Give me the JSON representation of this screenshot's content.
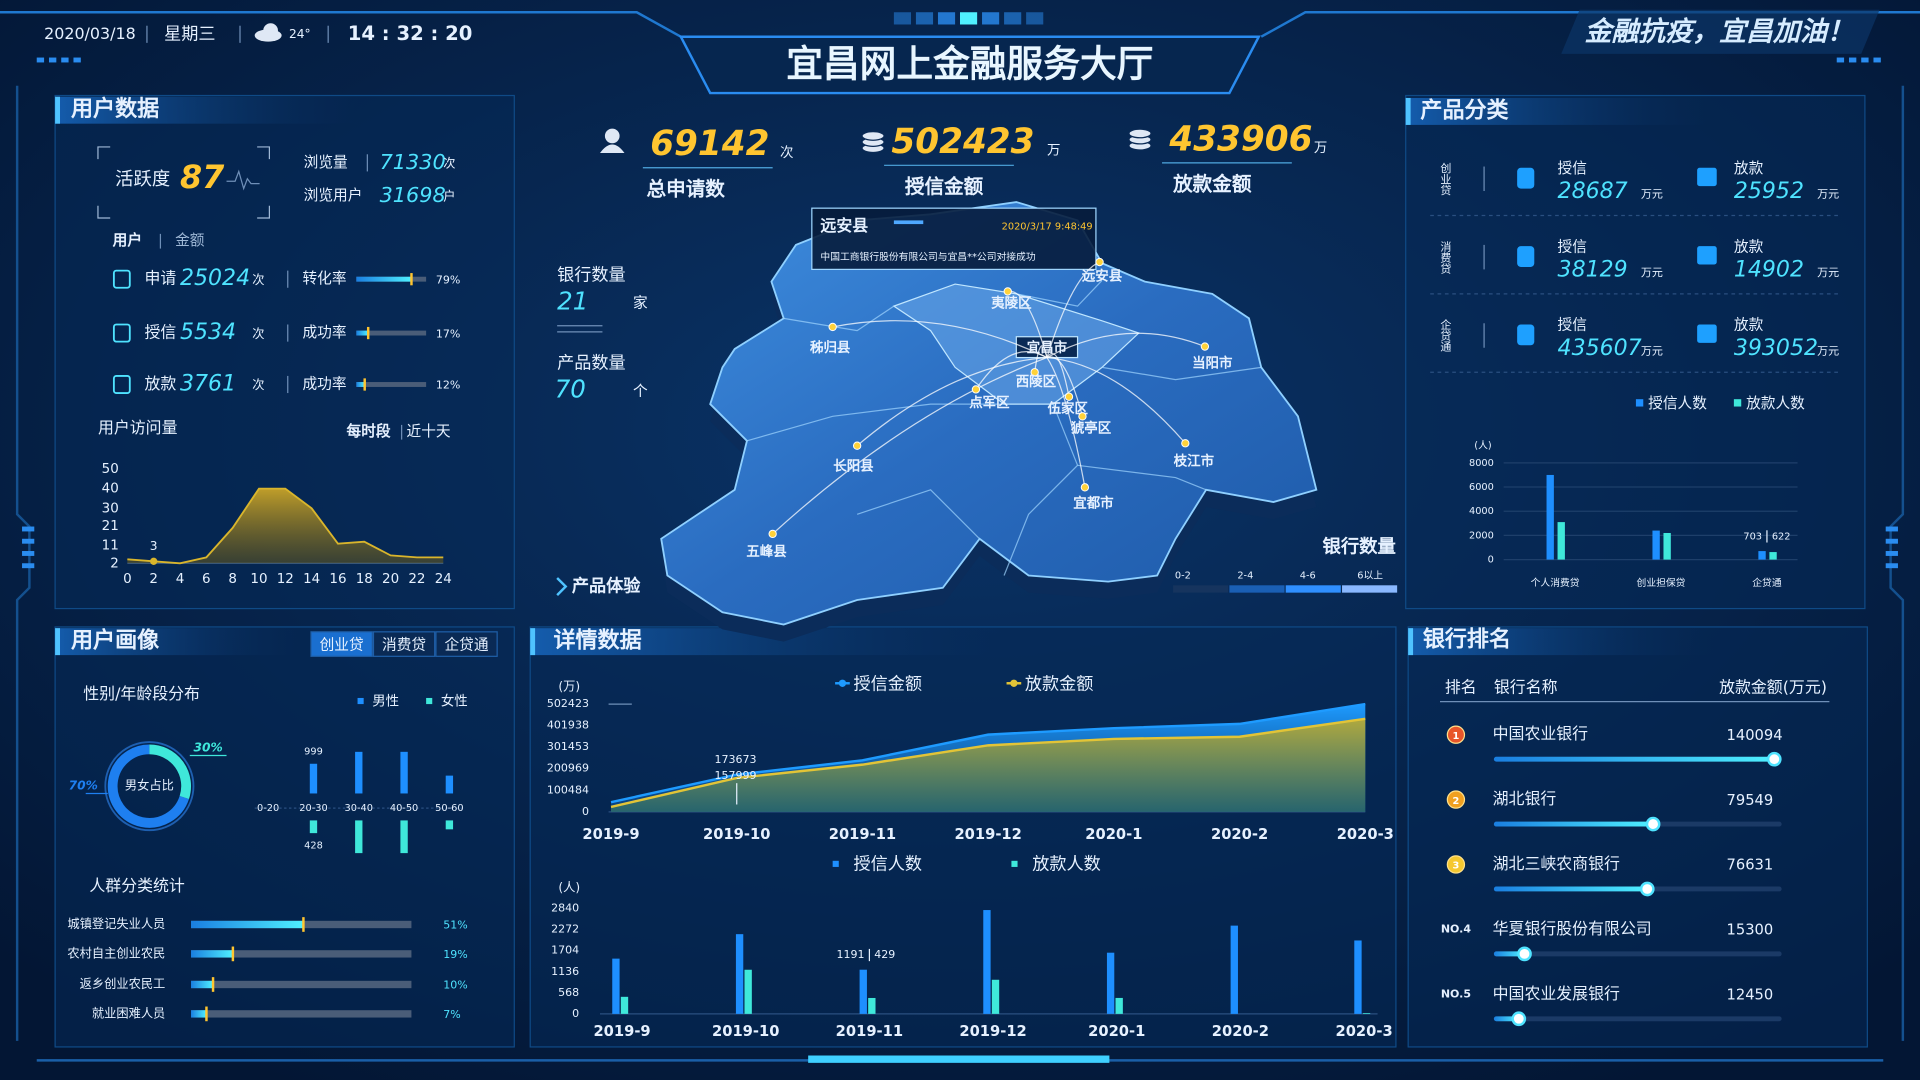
{
  "header": {
    "date": "2020/03/18",
    "weekday": "星期三",
    "temperature": "24°",
    "time": "14 : 32 : 20",
    "title": "宜昌网上金融服务大厅",
    "slogan": "金融抗疫，宜昌加油！"
  },
  "user_data": {
    "title": "用户数据",
    "activity_label": "活跃度",
    "activity": 87,
    "views_label": "浏览量",
    "views": 71330,
    "views_unit": "次",
    "visitors_label": "浏览用户",
    "visitors": 31698,
    "visitors_unit": "户",
    "tabs": [
      "用户",
      "金额"
    ],
    "xlim": [
      0,
      100
    ],
    "rows": [
      {
        "label": "申请",
        "value": 25024,
        "unit": "次",
        "rate_name": "转化率",
        "rate": 79,
        "rate_text": "79%"
      },
      {
        "label": "授信",
        "value": 5534,
        "unit": "次",
        "rate_name": "成功率",
        "rate": 17,
        "rate_text": "17%"
      },
      {
        "label": "放款",
        "value": 3761,
        "unit": "次",
        "rate_name": "成功率",
        "rate": 12,
        "rate_text": "12%"
      }
    ],
    "visits": {
      "title": "用户访问量",
      "tabs": [
        "每时段",
        "近十天"
      ],
      "chart": {
        "type": "area",
        "color": "#d9b52c",
        "x": [
          0,
          2,
          4,
          6,
          8,
          10,
          12,
          14,
          16,
          18,
          20,
          22,
          24
        ],
        "values": [
          4,
          3,
          2,
          5,
          20,
          40,
          40,
          30,
          12,
          13,
          6,
          5,
          5
        ],
        "value_labels": [
          null,
          "3",
          null,
          null,
          null,
          null,
          null,
          null,
          null,
          null,
          null,
          null,
          null
        ],
        "xlim": [
          0,
          24
        ],
        "xticks": [
          0,
          2,
          4,
          6,
          8,
          10,
          12,
          14,
          16,
          18,
          20,
          22,
          24
        ],
        "ylim": [
          2,
          50
        ],
        "yticks": [
          2,
          11,
          21,
          30,
          40,
          50
        ]
      }
    }
  },
  "product": {
    "title": "产品分类",
    "rows": [
      {
        "name": "创业贷",
        "credit_label": "授信",
        "credit": 28687,
        "credit_unit": "万元",
        "loan_label": "放款",
        "loan": 25952,
        "loan_unit": "万元"
      },
      {
        "name": "消费贷",
        "credit_label": "授信",
        "credit": 38129,
        "credit_unit": "万元",
        "loan_label": "放款",
        "loan": 14902,
        "loan_unit": "万元"
      },
      {
        "name": "企贷通",
        "credit_label": "授信",
        "credit": 435607,
        "credit_unit": "万元",
        "loan_label": "放款",
        "loan": 393052,
        "loan_unit": "万元"
      }
    ],
    "chart": {
      "type": "bar",
      "unit": "(人)",
      "grid": true,
      "categories": [
        "个人消费贷",
        "创业担保贷",
        "企贷通"
      ],
      "series": [
        {
          "name": "授信人数",
          "color": "#1e8fff",
          "values": [
            7000,
            2400,
            703
          ],
          "value_labels": [
            null,
            null,
            "703"
          ]
        },
        {
          "name": "放款人数",
          "color": "#3fe8da",
          "values": [
            3100,
            2200,
            622
          ],
          "value_labels": [
            null,
            null,
            "622"
          ]
        }
      ],
      "ylim": [
        0,
        8000
      ],
      "yticks": [
        0,
        2000,
        4000,
        6000,
        8000
      ]
    }
  },
  "center": {
    "stats": [
      {
        "value": 69142,
        "unit": "次",
        "label": "总申请数"
      },
      {
        "value": 502423,
        "unit": "万",
        "label": "授信金额"
      },
      {
        "value": 433906,
        "unit": "万",
        "label": "放款金额"
      }
    ],
    "bank_count_label": "银行数量",
    "bank_count": 21,
    "bank_count_unit": "家",
    "product_count_label": "产品数量",
    "product_count": 70,
    "product_count_unit": "个",
    "map": {
      "tooltip": {
        "title": "远安县",
        "time": "2020/3/17 9:48:49",
        "text": "中国工商银行股份有限公司与宜昌**公司对接成功"
      },
      "places": [
        "远安县",
        "夷陵区",
        "秭归县",
        "宜昌市",
        "当阳市",
        "点军区",
        "西陵区",
        "伍家区",
        "猇亭区",
        "枝江市",
        "长阳县",
        "宜都市",
        "五峰县"
      ],
      "legend_title": "银行数量",
      "legend_ranges": [
        "0-2",
        "2-4",
        "4-6",
        "6以上"
      ]
    },
    "link": "产品体验"
  },
  "portrait": {
    "title": "用户画像",
    "tabs": [
      "创业贷",
      "消费贷",
      "企贷通"
    ],
    "subtitle": "性别/年龄段分布",
    "donut": {
      "type": "pie",
      "center_label": "男女占比",
      "values": [
        70,
        30
      ],
      "value_labels": [
        "70%",
        "30%"
      ],
      "colors": [
        "#1e7ff0",
        "#3fe8da"
      ]
    },
    "age": {
      "type": "bar",
      "categories": [
        "0-20",
        "20-30",
        "30-40",
        "40-50",
        "50-60"
      ],
      "series": [
        {
          "name": "男性",
          "color": "#1e8fff",
          "values": [
            0,
            999,
            1400,
            1400,
            600
          ],
          "value_labels": [
            null,
            "999",
            null,
            null,
            null
          ]
        },
        {
          "name": "女性",
          "color": "#3fe8da",
          "values": [
            0,
            428,
            1100,
            1100,
            300
          ],
          "value_labels": [
            null,
            "428",
            null,
            null,
            null
          ]
        }
      ]
    },
    "groups": {
      "title": "人群分类统计",
      "xlim": [
        0,
        100
      ],
      "rows": [
        {
          "label": "城镇登记失业人员",
          "value": 51,
          "value_label": "51%"
        },
        {
          "label": "农村自主创业农民",
          "value": 19,
          "value_label": "19%"
        },
        {
          "label": "返乡创业农民工",
          "value": 10,
          "value_label": "10%"
        },
        {
          "label": "就业困难人员",
          "value": 7,
          "value_label": "7%"
        }
      ]
    }
  },
  "details": {
    "title": "详情数据",
    "amount": {
      "type": "area",
      "unit": "(万)",
      "grid": false,
      "categories": [
        "2019-9",
        "2019-10",
        "2019-11",
        "2019-12",
        "2020-1",
        "2020-2",
        "2020-3"
      ],
      "series": [
        {
          "name": "授信金额",
          "color": "#1e9bff",
          "values": [
            45000,
            173673,
            240000,
            360000,
            390000,
            410000,
            502423
          ],
          "value_labels": [
            null,
            "173673",
            null,
            null,
            null,
            null,
            null
          ]
        },
        {
          "name": "放款金额",
          "color": "#e2c437",
          "values": [
            23000,
            157999,
            220000,
            310000,
            340000,
            350000,
            433906
          ],
          "value_labels": [
            null,
            "157999",
            null,
            null,
            null,
            null,
            null
          ]
        }
      ],
      "ylim": [
        0,
        502423
      ],
      "yticks": [
        0,
        100484,
        200969,
        301453,
        401938,
        502423
      ]
    },
    "people": {
      "type": "bar",
      "unit": "(人)",
      "grid": false,
      "categories": [
        "2019-9",
        "2019-10",
        "2019-11",
        "2019-12",
        "2020-1",
        "2020-2",
        "2020-3"
      ],
      "series": [
        {
          "name": "授信人数",
          "color": "#1e8fff",
          "values": [
            1490,
            2150,
            1191,
            2800,
            1650,
            2380,
            1980
          ],
          "value_labels": [
            null,
            null,
            "1191",
            null,
            null,
            null,
            null
          ]
        },
        {
          "name": "放款人数",
          "color": "#3fe8da",
          "values": [
            460,
            1190,
            429,
            920,
            430,
            0,
            20
          ],
          "value_labels": [
            null,
            null,
            "429",
            null,
            null,
            null,
            null
          ]
        }
      ],
      "ylim": [
        0,
        2840
      ],
      "yticks": [
        0,
        568,
        1136,
        1704,
        2272,
        2840
      ]
    }
  },
  "ranking": {
    "title": "银行排名",
    "columns": [
      "排名",
      "银行名称",
      "放款金额(万元)"
    ],
    "rows": [
      {
        "rank": "1",
        "name": "中国农业银行",
        "value": 140094
      },
      {
        "rank": "2",
        "name": "湖北银行",
        "value": 79549
      },
      {
        "rank": "3",
        "name": "湖北三峡农商银行",
        "value": 76631
      },
      {
        "rank": "NO.4",
        "name": "华夏银行股份有限公司",
        "value": 15300
      },
      {
        "rank": "NO.5",
        "name": "中国农业发展银行",
        "value": 12450
      }
    ]
  }
}
